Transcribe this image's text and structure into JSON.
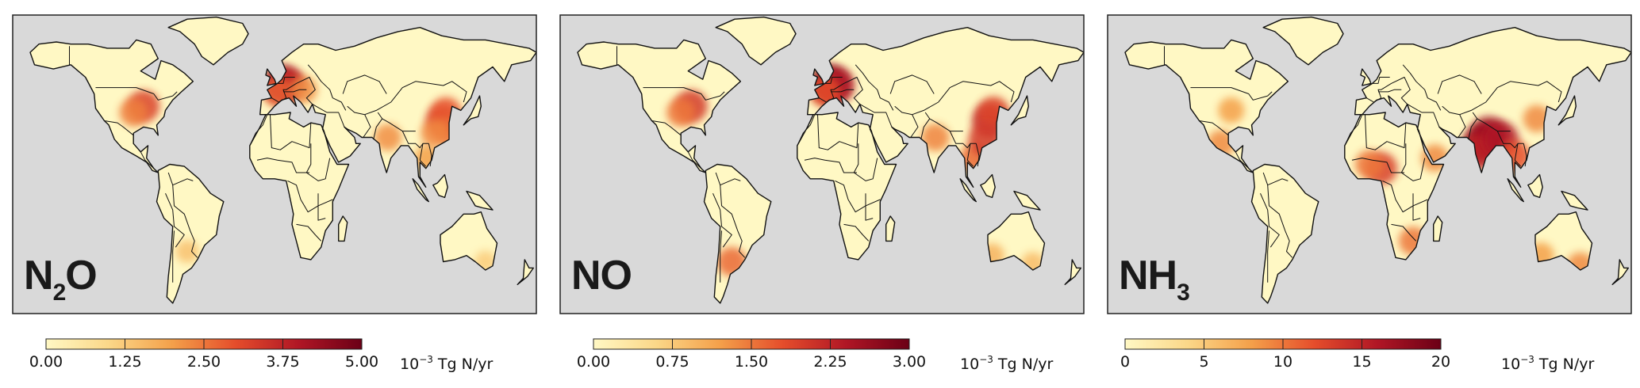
{
  "panels": [
    {
      "species_main": "N",
      "species_sub": "2",
      "species_tail": "O",
      "colorbar_ticks": [
        "0.00",
        "1.25",
        "2.50",
        "3.75",
        "5.00"
      ],
      "colorbar_range": [
        0,
        5
      ],
      "unit_exp": "−3",
      "unit_rest": " Tg N/yr",
      "hotspots": [
        {
          "lon": -90,
          "lat": 40,
          "value": 3.2
        },
        {
          "lon": -97,
          "lat": 37,
          "value": 2.4
        },
        {
          "lon": 5,
          "lat": 51,
          "value": 4.3
        },
        {
          "lon": 10,
          "lat": 50,
          "value": 3.6
        },
        {
          "lon": 2,
          "lat": 47,
          "value": 2.8
        },
        {
          "lon": 20,
          "lat": 48,
          "value": 2.2
        },
        {
          "lon": 78,
          "lat": 25,
          "value": 2.2
        },
        {
          "lon": 105,
          "lat": 15,
          "value": 2.0
        },
        {
          "lon": 115,
          "lat": 33,
          "value": 3.2
        },
        {
          "lon": 118,
          "lat": 37,
          "value": 2.9
        },
        {
          "lon": 120,
          "lat": 28,
          "value": 2.6
        },
        {
          "lon": 110,
          "lat": 27,
          "value": 2.3
        },
        {
          "lon": -60,
          "lat": -30,
          "value": 1.4
        },
        {
          "lon": 145,
          "lat": -35,
          "value": 1.2
        }
      ]
    },
    {
      "species_main": "NO",
      "species_sub": "",
      "species_tail": "",
      "colorbar_ticks": [
        "0.00",
        "0.75",
        "1.50",
        "2.25",
        "3.00"
      ],
      "colorbar_range": [
        0,
        3
      ],
      "unit_exp": "−3",
      "unit_rest": " Tg N/yr",
      "hotspots": [
        {
          "lon": -90,
          "lat": 40,
          "value": 2.0
        },
        {
          "lon": -97,
          "lat": 37,
          "value": 1.5
        },
        {
          "lon": 5,
          "lat": 51,
          "value": 2.7
        },
        {
          "lon": 10,
          "lat": 50,
          "value": 2.4
        },
        {
          "lon": 2,
          "lat": 47,
          "value": 1.8
        },
        {
          "lon": 78,
          "lat": 25,
          "value": 1.4
        },
        {
          "lon": 105,
          "lat": 15,
          "value": 1.6
        },
        {
          "lon": 115,
          "lat": 33,
          "value": 2.2
        },
        {
          "lon": 118,
          "lat": 37,
          "value": 1.9
        },
        {
          "lon": 112,
          "lat": 24,
          "value": 2.0
        },
        {
          "lon": -62,
          "lat": -35,
          "value": 1.6
        },
        {
          "lon": 117,
          "lat": -32,
          "value": 1.0
        },
        {
          "lon": 145,
          "lat": -36,
          "value": 0.9
        }
      ]
    },
    {
      "species_main": "NH",
      "species_sub": "3",
      "species_tail": "",
      "colorbar_ticks": [
        "0",
        "5",
        "10",
        "15",
        "20"
      ],
      "colorbar_range": [
        0,
        20
      ],
      "unit_exp": "−3",
      "unit_rest": " Tg N/yr",
      "hotspots": [
        {
          "lon": -95,
          "lat": 38,
          "value": 8
        },
        {
          "lon": -102,
          "lat": 22,
          "value": 9
        },
        {
          "lon": 8,
          "lat": 10,
          "value": 13
        },
        {
          "lon": 0,
          "lat": 12,
          "value": 10
        },
        {
          "lon": 78,
          "lat": 22,
          "value": 18
        },
        {
          "lon": 82,
          "lat": 26,
          "value": 17
        },
        {
          "lon": 74,
          "lat": 18,
          "value": 15
        },
        {
          "lon": 90,
          "lat": 24,
          "value": 16
        },
        {
          "lon": 100,
          "lat": 16,
          "value": 12
        },
        {
          "lon": 45,
          "lat": 15,
          "value": 9
        },
        {
          "lon": 30,
          "lat": -25,
          "value": 10
        },
        {
          "lon": 115,
          "lat": 34,
          "value": 9
        },
        {
          "lon": 118,
          "lat": -32,
          "value": 8
        },
        {
          "lon": 145,
          "lat": -37,
          "value": 9
        }
      ]
    }
  ],
  "colors": {
    "ocean": "#d9d9d9",
    "land": "#fff8c4",
    "border": "#111111",
    "scale": [
      "#fff8c4",
      "#fbd788",
      "#f4a04a",
      "#e54d2b",
      "#b01625",
      "#6b0016"
    ]
  }
}
